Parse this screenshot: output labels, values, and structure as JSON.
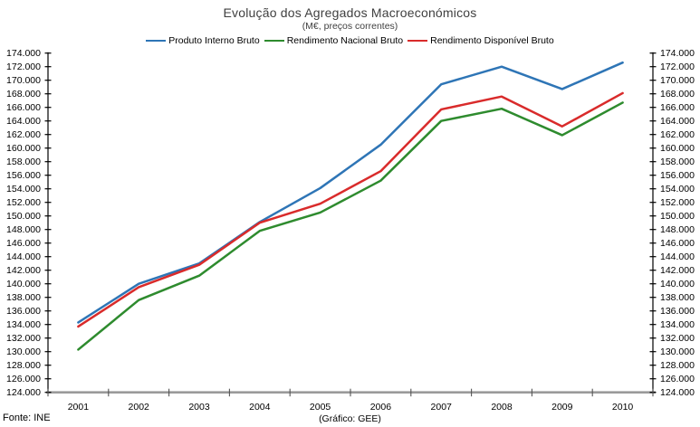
{
  "title": "Evolução dos Agregados Macroeconómicos",
  "subtitle": "(M€, preços correntes)",
  "footer": {
    "source": "Fonte: INE",
    "credit": "(Gráfico: GEE)"
  },
  "chart_data": {
    "type": "line",
    "title": "Evolução dos Agregados Macroeconómicos",
    "subtitle": "(M€, preços correntes)",
    "x": [
      2001,
      2002,
      2003,
      2004,
      2005,
      2006,
      2007,
      2008,
      2009,
      2010
    ],
    "series": [
      {
        "name": "Produto Interno Bruto",
        "color": "#2e75b6",
        "values": [
          134300,
          140000,
          143000,
          149100,
          154100,
          160500,
          169400,
          172000,
          168700,
          172600
        ]
      },
      {
        "name": "Rendimento Nacional Bruto",
        "color": "#2e8b2e",
        "values": [
          130300,
          137600,
          141200,
          147800,
          150500,
          155200,
          164000,
          165800,
          161900,
          166700
        ]
      },
      {
        "name": "Rendimento Disponível Bruto",
        "color": "#d92b2b",
        "values": [
          133700,
          139500,
          142800,
          149000,
          151800,
          156600,
          165700,
          167600,
          163200,
          168100
        ]
      }
    ],
    "ylim": [
      124000,
      174000
    ],
    "ytick_step": 2000,
    "ytick_format": "thousands-dot",
    "legend_position": "top",
    "grid": false,
    "axes": {
      "left": true,
      "right": true,
      "bottom": true
    },
    "axis_color": "#000000",
    "baseline_color": "#9a9a9a"
  }
}
